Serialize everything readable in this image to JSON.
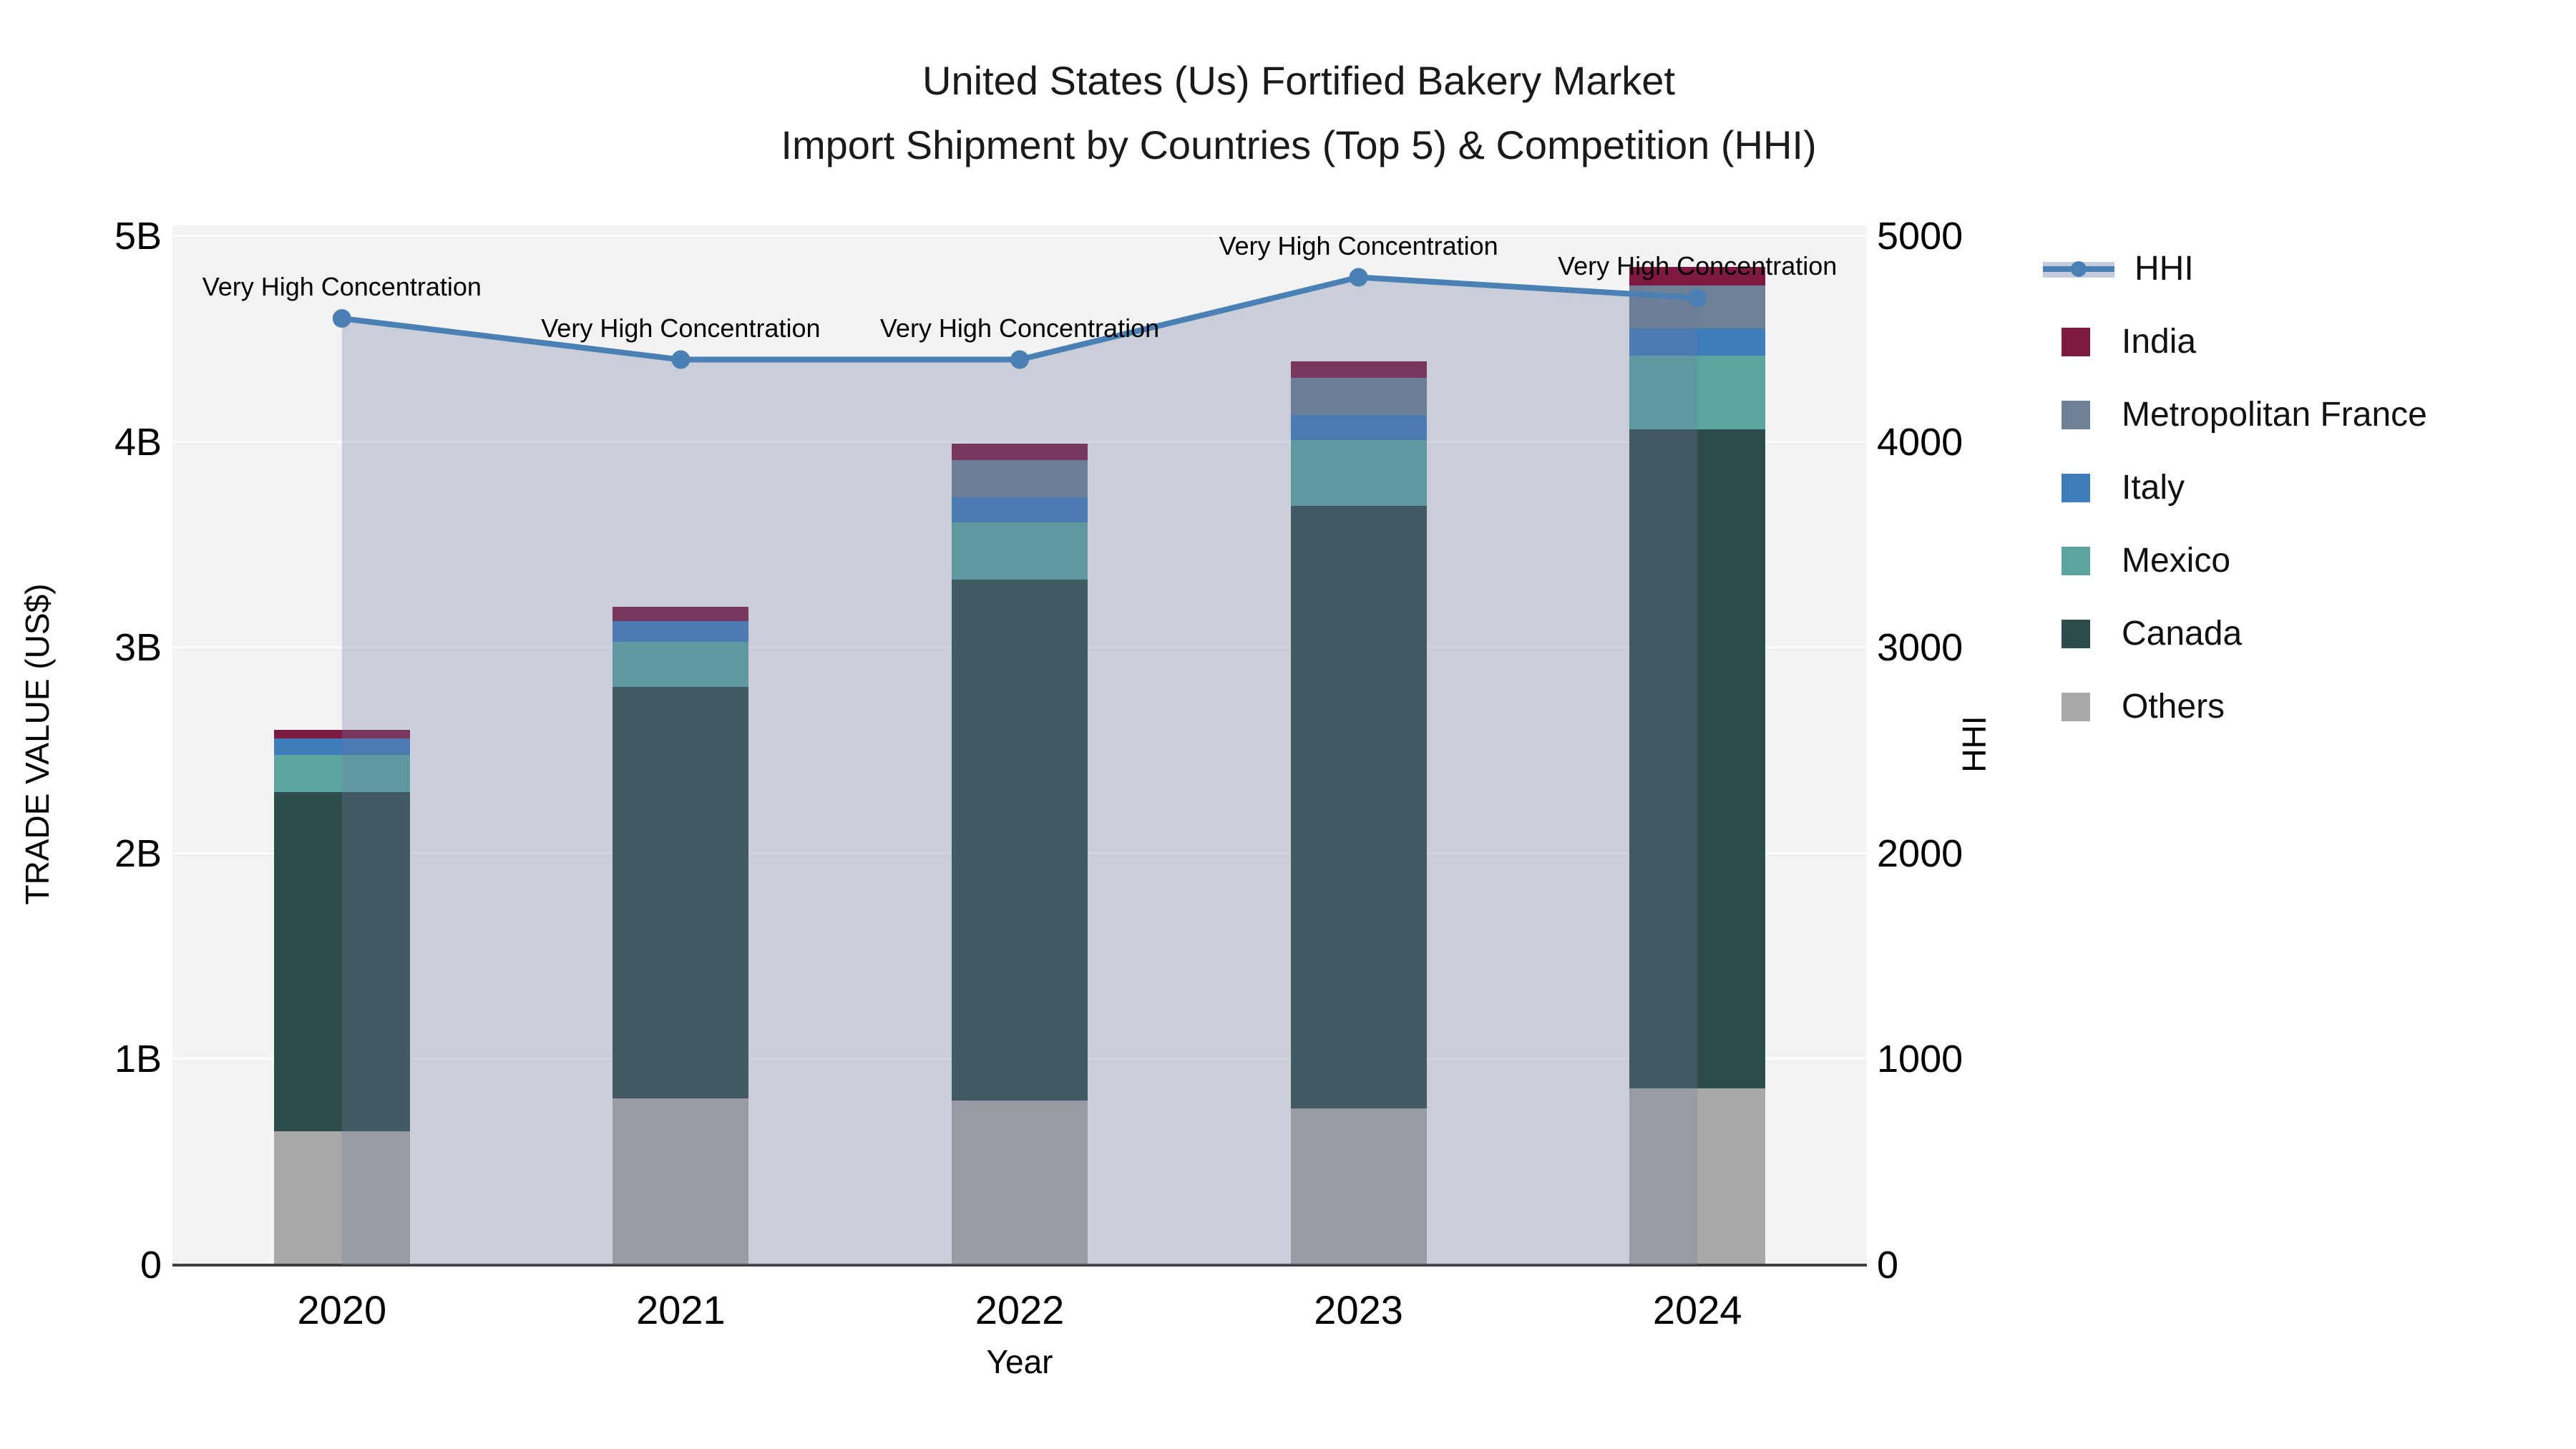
{
  "title": {
    "line1": "United States (Us) Fortified Bakery Market",
    "line2": "Import Shipment by Countries (Top 5) & Competition (HHI)"
  },
  "axes": {
    "left": {
      "label": "TRADE VALUE (US$)",
      "ticks": [
        "0",
        "1B",
        "2B",
        "3B",
        "4B",
        "5B"
      ],
      "max_billions": 5
    },
    "right": {
      "label": "HHI",
      "ticks": [
        "0",
        "1000",
        "2000",
        "3000",
        "4000",
        "5000"
      ],
      "max": 5000
    },
    "x": {
      "label": "Year",
      "categories": [
        "2020",
        "2021",
        "2022",
        "2023",
        "2024"
      ]
    }
  },
  "colors": {
    "plot_background": "#f2f3f2",
    "hhi_line": "#4b80b5",
    "hhi_area_fill": "rgba(109,124,160,0.30)",
    "india": "#7e1a41",
    "metropolitan_france": "#6e8095",
    "italy": "#3e7cba",
    "mexico": "#5ba5a0",
    "canada": "#2e4c4a",
    "others": "#a8a9a7"
  },
  "legend": [
    {
      "label": "HHI",
      "type": "line",
      "color": "#4b80b5"
    },
    {
      "label": "India",
      "type": "box",
      "color": "#7e1a41"
    },
    {
      "label": "Metropolitan France",
      "type": "box",
      "color": "#6e8095"
    },
    {
      "label": "Italy",
      "type": "box",
      "color": "#3e7cba"
    },
    {
      "label": "Mexico",
      "type": "box",
      "color": "#5ba5a0"
    },
    {
      "label": "Canada",
      "type": "box",
      "color": "#2e4c4a"
    },
    {
      "label": "Others",
      "type": "box",
      "color": "#a8a9a7"
    }
  ],
  "chart_data": {
    "type": "bar",
    "subtype": "stacked bars with HHI line+area overlay on secondary axis",
    "title": "United States (Us) Fortified Bakery Market Import Shipment by Countries (Top 5) & Competition (HHI)",
    "xlabel": "Year",
    "ylabel_left": "TRADE VALUE (US$)",
    "ylabel_right": "HHI",
    "ylim_left_billions": [
      0,
      5
    ],
    "ylim_right": [
      0,
      5000
    ],
    "grid": true,
    "legend_position": "right",
    "categories": [
      "2020",
      "2021",
      "2022",
      "2023",
      "2024"
    ],
    "series": [
      {
        "name": "Others",
        "stack_order": 1,
        "values_billions": [
          0.65,
          0.81,
          0.8,
          0.76,
          0.86
        ]
      },
      {
        "name": "Canada",
        "stack_order": 2,
        "values_billions": [
          1.65,
          2.0,
          2.53,
          2.93,
          3.2
        ]
      },
      {
        "name": "Mexico",
        "stack_order": 3,
        "values_billions": [
          0.18,
          0.22,
          0.28,
          0.32,
          0.36
        ]
      },
      {
        "name": "Italy",
        "stack_order": 4,
        "values_billions": [
          0.08,
          0.1,
          0.12,
          0.12,
          0.13
        ]
      },
      {
        "name": "Metropolitan France",
        "stack_order": 5,
        "values_billions": [
          0.0,
          0.0,
          0.18,
          0.18,
          0.21
        ]
      },
      {
        "name": "India",
        "stack_order": 6,
        "values_billions": [
          0.04,
          0.07,
          0.08,
          0.08,
          0.09
        ]
      }
    ],
    "totals_billions": [
      2.6,
      3.2,
      3.99,
      4.39,
      4.85
    ],
    "line_series": {
      "name": "HHI",
      "axis": "right",
      "values": [
        4600,
        4400,
        4400,
        4800,
        4700
      ]
    },
    "annotations": [
      {
        "x": "2020",
        "text": "Very High Concentration"
      },
      {
        "x": "2021",
        "text": "Very High Concentration"
      },
      {
        "x": "2022",
        "text": "Very High Concentration"
      },
      {
        "x": "2023",
        "text": "Very High Concentration"
      },
      {
        "x": "2024",
        "text": "Very High Concentration"
      }
    ]
  }
}
